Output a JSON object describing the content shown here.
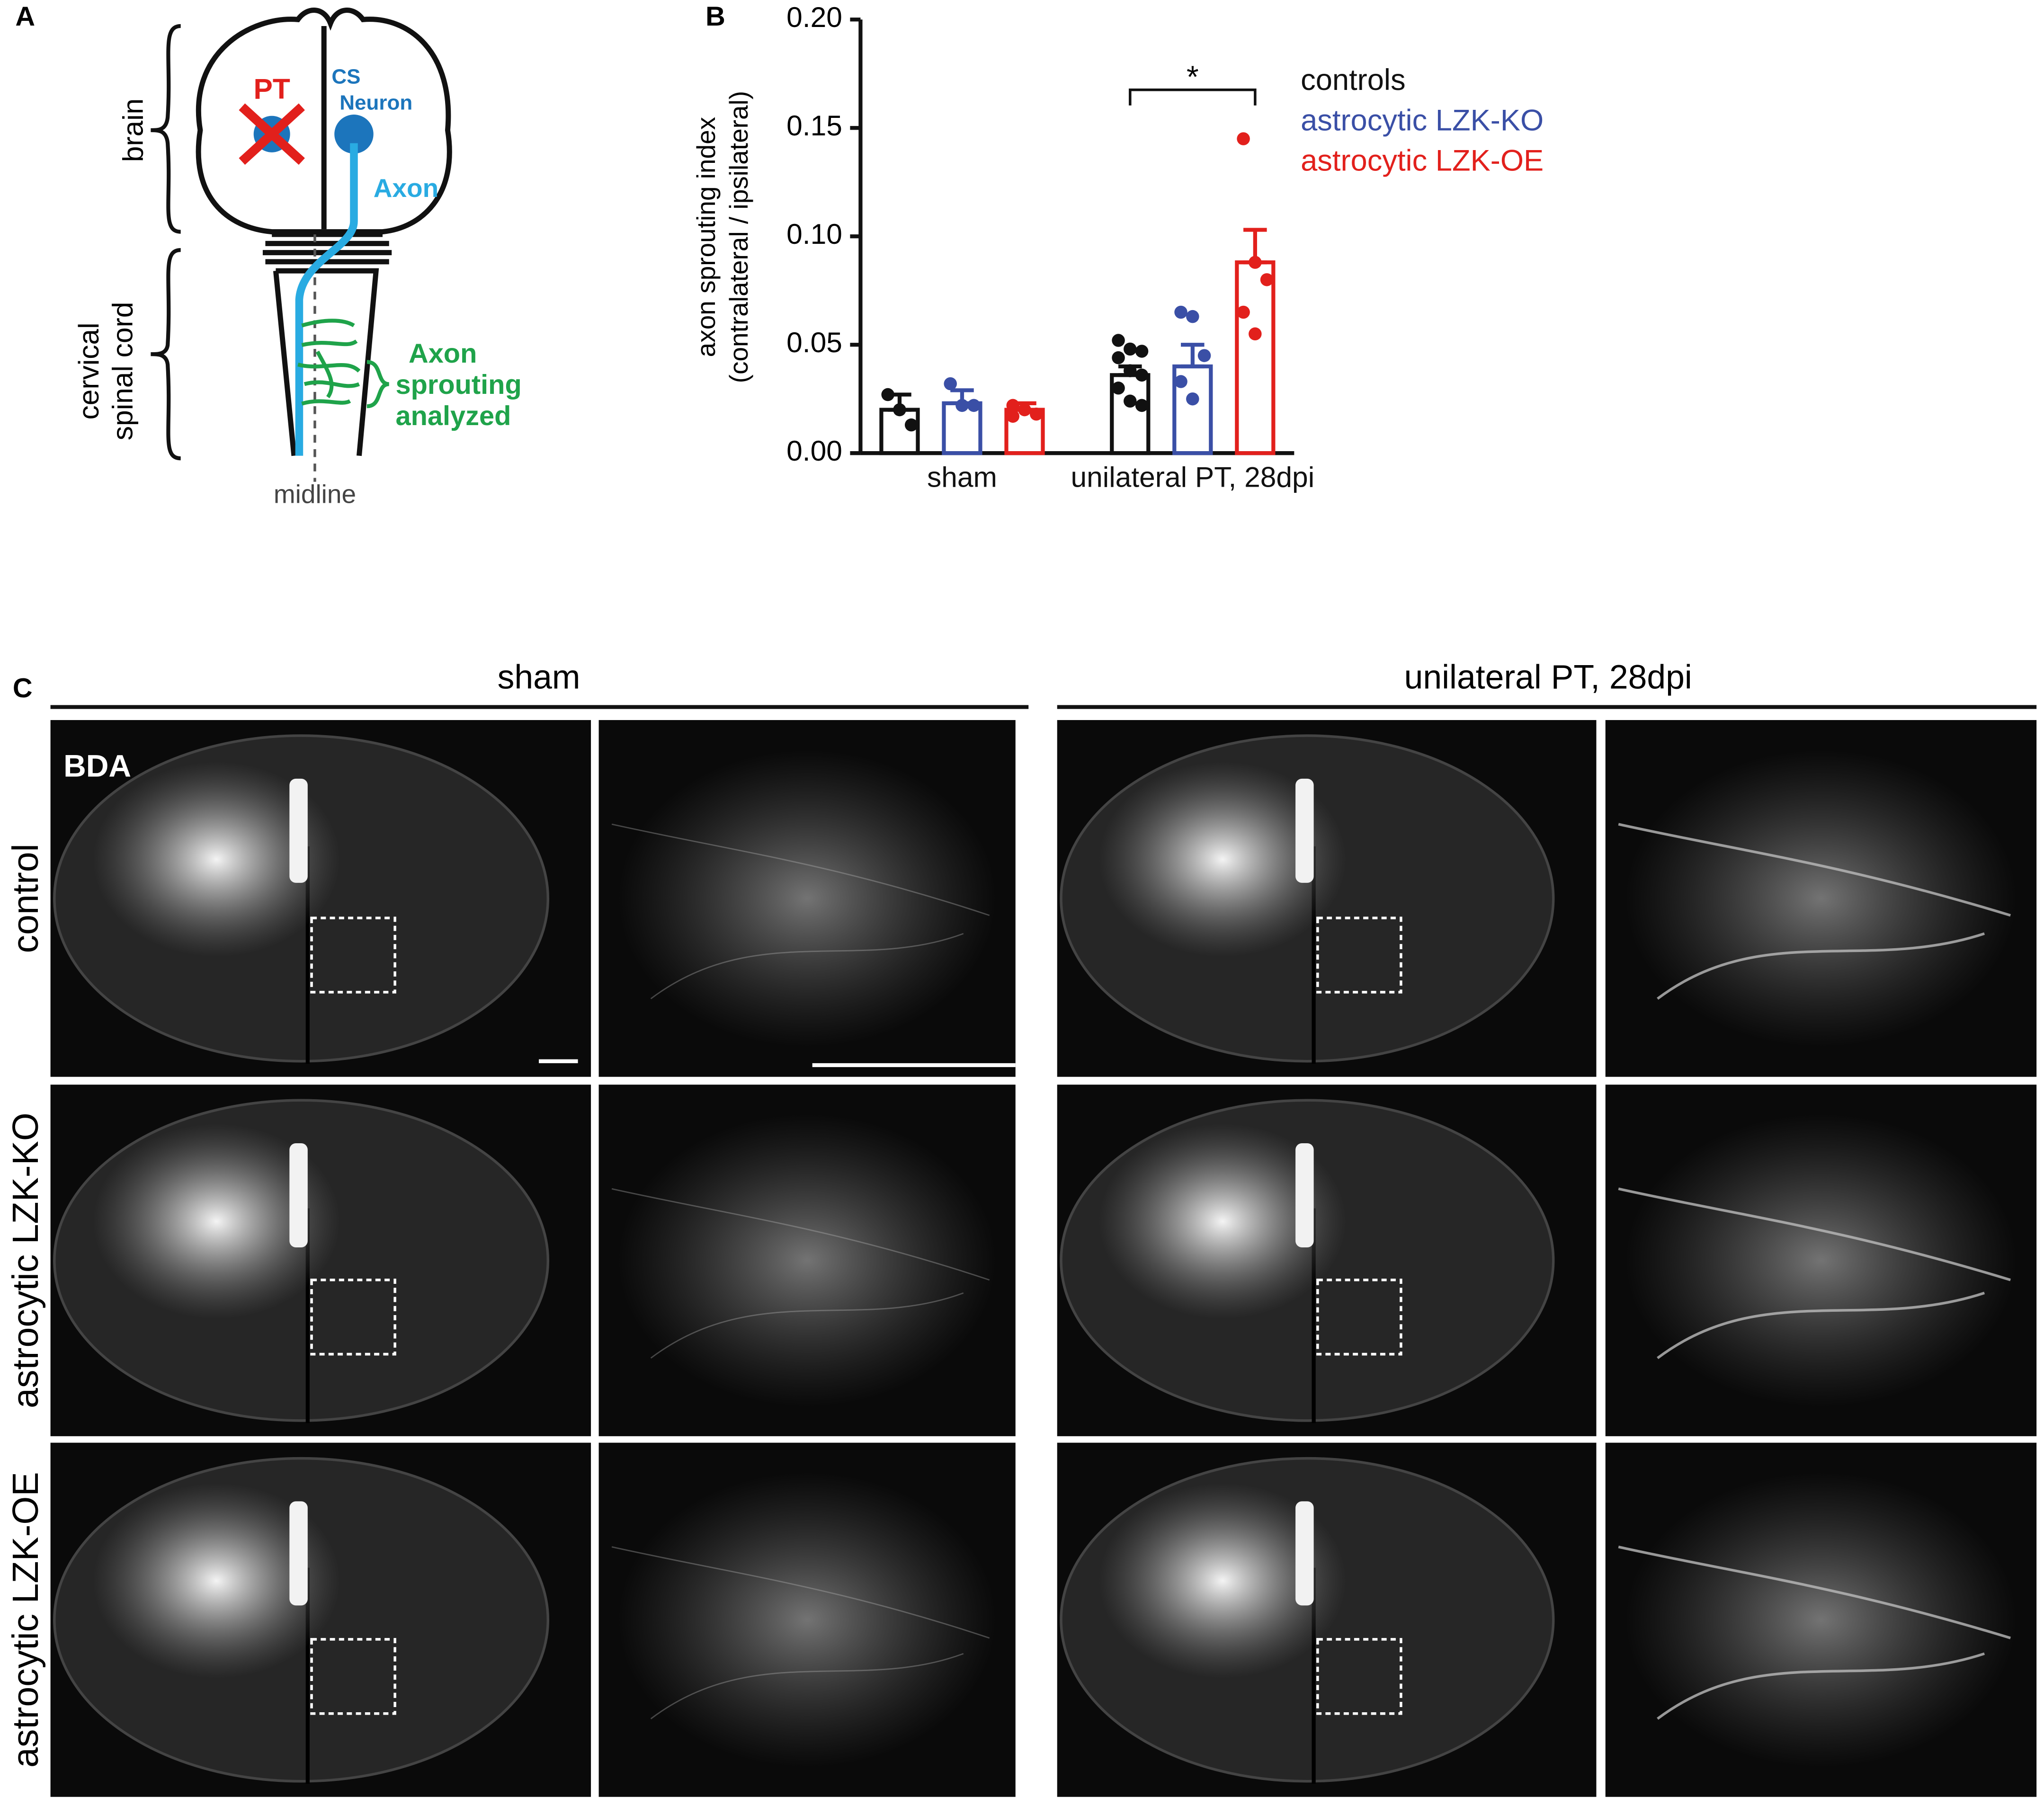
{
  "panel_a": {
    "label": "A",
    "brain": "brain",
    "spinal_cord": [
      "cervical",
      "spinal cord"
    ],
    "pt": "PT",
    "cs_neuron": [
      "CS",
      "Neuron"
    ],
    "axon": "Axon",
    "sprouting": [
      "Axon",
      "sprouting",
      "analyzed"
    ],
    "midline": "midline"
  },
  "chart_data": {
    "type": "bar",
    "panel_label": "B",
    "y_label": [
      "axon sprouting index",
      "(contralateral / ipsilateral)"
    ],
    "categories": [
      "sham",
      "unilateral PT, 28dpi"
    ],
    "series": [
      {
        "name": "controls",
        "color": "#111111",
        "values": [
          0.02,
          0.036
        ],
        "errors": [
          0.007,
          0.004
        ],
        "points": [
          [
            0.027,
            0.02,
            0.013
          ],
          [
            0.052,
            0.048,
            0.047,
            0.044,
            0.038,
            0.036,
            0.03,
            0.024,
            0.022
          ]
        ]
      },
      {
        "name": "astrocytic LZK-KO",
        "color": "#3a4fa6",
        "values": [
          0.023,
          0.04
        ],
        "errors": [
          0.006,
          0.01
        ],
        "points": [
          [
            0.032,
            0.022,
            0.022
          ],
          [
            0.065,
            0.063,
            0.045,
            0.033,
            0.025
          ]
        ]
      },
      {
        "name": "astrocytic LZK-OE",
        "color": "#e2201c",
        "values": [
          0.02,
          0.088
        ],
        "errors": [
          0.003,
          0.015
        ],
        "points": [
          [
            0.022,
            0.02,
            0.018,
            0.017
          ],
          [
            0.145,
            0.088,
            0.08,
            0.065,
            0.055
          ]
        ]
      }
    ],
    "ylim": [
      0,
      0.2
    ],
    "yticks": [
      {
        "value": 0,
        "label": "0.00"
      },
      {
        "value": 0.05,
        "label": "0.05"
      },
      {
        "value": 0.1,
        "label": "0.10"
      },
      {
        "value": 0.15,
        "label": "0.15"
      },
      {
        "value": 0.2,
        "label": "0.20"
      }
    ],
    "annotation": "*",
    "legend": "right"
  },
  "panel_c": {
    "label": "C",
    "columns": [
      "sham",
      "unilateral PT, 28dpi"
    ],
    "rows": [
      "control",
      "astrocytic LZK-KO",
      "astrocytic LZK-OE"
    ],
    "stain": "BDA"
  }
}
